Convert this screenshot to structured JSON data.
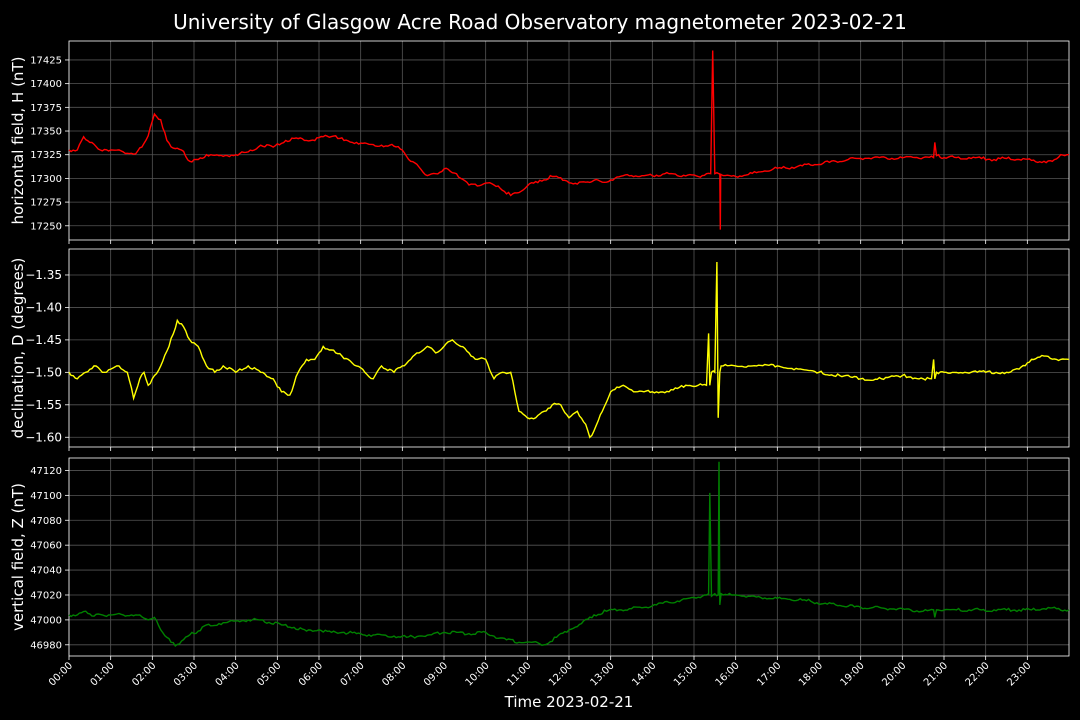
{
  "title": "University of Glasgow Acre Road Observatory magnetometer 2023-02-21",
  "xlabel": "Time 2023-02-21",
  "x_ticks": [
    "00:00",
    "01:00",
    "02:00",
    "03:00",
    "04:00",
    "05:00",
    "06:00",
    "07:00",
    "08:00",
    "09:00",
    "10:00",
    "11:00",
    "12:00",
    "13:00",
    "14:00",
    "15:00",
    "16:00",
    "17:00",
    "18:00",
    "19:00",
    "20:00",
    "21:00",
    "22:00",
    "23:00"
  ],
  "colors": {
    "background": "#000000",
    "grid": "#555555",
    "text": "#ffffff"
  },
  "chart_data": [
    {
      "type": "line",
      "ylabel": "horizontal field, H (nT)",
      "color": "#ff0000",
      "xlim": [
        0,
        24
      ],
      "ylim": [
        17235,
        17445
      ],
      "yticks": [
        17250,
        17275,
        17300,
        17325,
        17350,
        17375,
        17400,
        17425
      ],
      "ytick_labels": [
        "17250",
        "17275",
        "17300",
        "17325",
        "17350",
        "17375",
        "17400",
        "17425"
      ],
      "grid": true,
      "series": [
        {
          "x": [
            0,
            0.2,
            0.35,
            0.5,
            0.7,
            1.0,
            1.3,
            1.6,
            1.75,
            1.9,
            2.05,
            2.2,
            2.35,
            2.5,
            2.7,
            2.9,
            3.1,
            3.3,
            3.6,
            4.0,
            4.3,
            4.6,
            4.9,
            5.2,
            5.5,
            5.8,
            6.1,
            6.4,
            6.6,
            6.9,
            7.2,
            7.5,
            7.8,
            8.0,
            8.2,
            8.4,
            8.6,
            8.8,
            9.0,
            9.3,
            9.6,
            9.8,
            10.0,
            10.3,
            10.6,
            10.8,
            11.0,
            11.3,
            11.6,
            11.9,
            12.2,
            12.4,
            12.6,
            12.8,
            13.1,
            13.4,
            13.7,
            14.0,
            14.3,
            14.6,
            14.9,
            15.1,
            15.3,
            15.4,
            15.45,
            15.5,
            15.55,
            15.6,
            15.7,
            16.0,
            16.3,
            16.6,
            16.9,
            17.2,
            17.5,
            17.8,
            18.1,
            18.4,
            18.7,
            19.0,
            19.3,
            19.6,
            19.9,
            20.2,
            20.5,
            20.75,
            20.78,
            20.82,
            21.0,
            21.3,
            21.6,
            21.9,
            22.2,
            22.5,
            22.8,
            23.1,
            23.4,
            23.6,
            23.8,
            24
          ],
          "y": [
            17330,
            17330,
            17344,
            17338,
            17331,
            17330,
            17328,
            17326,
            17333,
            17345,
            17368,
            17362,
            17340,
            17332,
            17330,
            17318,
            17320,
            17325,
            17324,
            17325,
            17328,
            17335,
            17333,
            17340,
            17342,
            17340,
            17344,
            17345,
            17340,
            17338,
            17336,
            17335,
            17334,
            17330,
            17318,
            17312,
            17303,
            17305,
            17310,
            17305,
            17293,
            17292,
            17295,
            17292,
            17282,
            17285,
            17292,
            17298,
            17302,
            17298,
            17294,
            17296,
            17298,
            17296,
            17300,
            17304,
            17302,
            17303,
            17305,
            17303,
            17304,
            17302,
            17305,
            17305,
            17435,
            17305,
            17306,
            17305,
            17303,
            17302,
            17304,
            17307,
            17310,
            17311,
            17313,
            17314,
            17316,
            17318,
            17320,
            17321,
            17322,
            17322,
            17321,
            17323,
            17322,
            17322,
            17338,
            17324,
            17322,
            17322,
            17322,
            17321,
            17320,
            17321,
            17320,
            17319,
            17318,
            17318,
            17325,
            17325
          ]
        },
        {
          "name": "",
          "x": [
            15.62,
            15.63,
            15.64
          ],
          "y": [
            17305,
            17246,
            17305
          ]
        }
      ]
    },
    {
      "type": "line",
      "ylabel": "declination, D (degrees)",
      "color": "#ffff00",
      "xlim": [
        0,
        24
      ],
      "ylim": [
        -1.615,
        -1.31
      ],
      "yticks": [
        -1.6,
        -1.55,
        -1.5,
        -1.45,
        -1.4,
        -1.35
      ],
      "ytick_labels": [
        "−1.60",
        "−1.55",
        "−1.50",
        "−1.45",
        "−1.40",
        "−1.35"
      ],
      "grid": true,
      "series": [
        {
          "x": [
            0,
            0.2,
            0.4,
            0.6,
            0.8,
            1.0,
            1.2,
            1.4,
            1.55,
            1.7,
            1.8,
            1.9,
            2.0,
            2.2,
            2.4,
            2.6,
            2.75,
            2.9,
            3.1,
            3.3,
            3.5,
            3.7,
            4.0,
            4.3,
            4.6,
            4.9,
            5.1,
            5.3,
            5.5,
            5.7,
            5.9,
            6.1,
            6.4,
            6.7,
            6.9,
            7.1,
            7.3,
            7.5,
            7.8,
            8.0,
            8.2,
            8.4,
            8.6,
            8.8,
            9.0,
            9.2,
            9.4,
            9.6,
            9.8,
            10.0,
            10.2,
            10.4,
            10.6,
            10.7,
            10.8,
            11.0,
            11.2,
            11.4,
            11.6,
            11.8,
            12.0,
            12.2,
            12.4,
            12.5,
            12.6,
            12.8,
            13.0,
            13.3,
            13.6,
            14.0,
            14.4,
            14.8,
            15.1,
            15.3,
            15.35,
            15.38,
            15.42,
            15.5,
            15.55,
            15.58,
            15.62,
            15.65,
            15.7,
            16.0,
            16.5,
            17.0,
            17.5,
            18.0,
            18.5,
            19.0,
            19.5,
            20.0,
            20.5,
            20.7,
            20.75,
            20.78,
            20.82,
            21.0,
            21.5,
            22.0,
            22.5,
            22.8,
            23.1,
            23.4,
            23.7,
            24
          ],
          "y": [
            -1.5,
            -1.51,
            -1.5,
            -1.49,
            -1.5,
            -1.495,
            -1.49,
            -1.5,
            -1.54,
            -1.51,
            -1.5,
            -1.52,
            -1.51,
            -1.49,
            -1.46,
            -1.42,
            -1.43,
            -1.45,
            -1.46,
            -1.49,
            -1.5,
            -1.49,
            -1.5,
            -1.49,
            -1.5,
            -1.51,
            -1.53,
            -1.535,
            -1.5,
            -1.48,
            -1.48,
            -1.46,
            -1.47,
            -1.48,
            -1.49,
            -1.5,
            -1.51,
            -1.49,
            -1.5,
            -1.49,
            -1.48,
            -1.47,
            -1.46,
            -1.47,
            -1.46,
            -1.45,
            -1.46,
            -1.47,
            -1.48,
            -1.48,
            -1.51,
            -1.5,
            -1.5,
            -1.53,
            -1.56,
            -1.57,
            -1.57,
            -1.56,
            -1.55,
            -1.55,
            -1.57,
            -1.56,
            -1.58,
            -1.6,
            -1.59,
            -1.56,
            -1.53,
            -1.52,
            -1.53,
            -1.53,
            -1.53,
            -1.52,
            -1.52,
            -1.52,
            -1.44,
            -1.52,
            -1.5,
            -1.5,
            -1.33,
            -1.57,
            -1.5,
            -1.49,
            -1.49,
            -1.49,
            -1.49,
            -1.49,
            -1.495,
            -1.5,
            -1.505,
            -1.51,
            -1.51,
            -1.505,
            -1.51,
            -1.51,
            -1.48,
            -1.51,
            -1.5,
            -1.5,
            -1.5,
            -1.5,
            -1.5,
            -1.495,
            -1.48,
            -1.475,
            -1.48,
            -1.48
          ]
        }
      ]
    },
    {
      "type": "line",
      "ylabel": "vertical field, Z (nT)",
      "color": "#008000",
      "xlim": [
        0,
        24
      ],
      "ylim": [
        46971,
        47130
      ],
      "yticks": [
        46980,
        47000,
        47020,
        47040,
        47060,
        47080,
        47100,
        47120
      ],
      "ytick_labels": [
        "46980",
        "47000",
        "47020",
        "47040",
        "47060",
        "47080",
        "47100",
        "47120"
      ],
      "grid": true,
      "series": [
        {
          "x": [
            0,
            0.2,
            0.4,
            0.6,
            0.8,
            1.0,
            1.3,
            1.6,
            1.9,
            2.05,
            2.2,
            2.4,
            2.55,
            2.7,
            2.9,
            3.1,
            3.3,
            3.6,
            4.0,
            4.3,
            4.6,
            4.8,
            5.1,
            5.4,
            5.7,
            6.0,
            6.3,
            6.6,
            6.9,
            7.2,
            7.5,
            7.8,
            8.1,
            8.4,
            8.7,
            9.0,
            9.3,
            9.6,
            9.9,
            10.2,
            10.5,
            10.8,
            11.1,
            11.4,
            11.7,
            12.0,
            12.3,
            12.6,
            12.9,
            13.2,
            13.5,
            13.8,
            14.1,
            14.4,
            14.7,
            15.0,
            15.2,
            15.3,
            15.35,
            15.38,
            15.42,
            15.5,
            15.58,
            15.6,
            15.62,
            15.65,
            15.7,
            16.0,
            16.3,
            16.6,
            16.9,
            17.2,
            17.5,
            17.8,
            18.1,
            18.4,
            18.7,
            19.0,
            19.3,
            19.6,
            19.9,
            20.2,
            20.5,
            20.75,
            20.78,
            20.82,
            21.0,
            21.3,
            21.6,
            21.9,
            22.2,
            22.5,
            22.8,
            23.1,
            23.4,
            23.7,
            24
          ],
          "y": [
            47004,
            47004,
            47007,
            47003,
            47004,
            47004,
            47004,
            47004,
            47000,
            47002,
            46992,
            46985,
            46979,
            46983,
            46988,
            46991,
            46996,
            46997,
            46999,
            47000,
            47000,
            46998,
            46996,
            46994,
            46991,
            46992,
            46990,
            46990,
            46989,
            46988,
            46988,
            46987,
            46986,
            46987,
            46988,
            46990,
            46990,
            46989,
            46990,
            46987,
            46984,
            46982,
            46982,
            46980,
            46986,
            46992,
            46997,
            47004,
            47007,
            47008,
            47009,
            47010,
            47012,
            47014,
            47016,
            47018,
            47019,
            47020,
            47021,
            47102,
            47019,
            47021,
            47020,
            47127,
            47012,
            47021,
            47020,
            47020,
            47019,
            47018,
            47017,
            47017,
            47016,
            47015,
            47013,
            47012,
            47011,
            47010,
            47010,
            47009,
            47009,
            47008,
            47007,
            47008,
            47002,
            47008,
            47008,
            47008,
            47008,
            47008,
            47008,
            47008,
            47008,
            47008,
            47009,
            47009,
            47008
          ]
        }
      ]
    }
  ]
}
